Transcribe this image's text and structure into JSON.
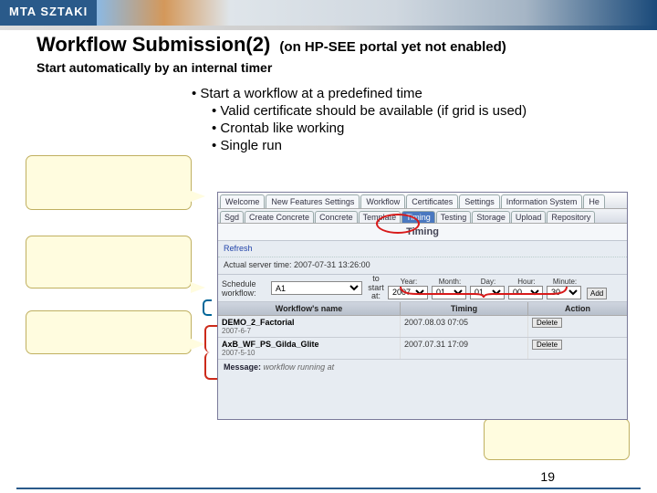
{
  "logo": "MTA SZTAKI",
  "title": "Workflow Submission(2)",
  "title_suffix": "(on HP-SEE portal yet not enabled)",
  "subtitle": "Start automatically by an internal timer",
  "bullets": {
    "b1": "• Start a workflow at a predefined time",
    "b2a": "• Valid certificate should be available (if grid is used)",
    "b2b": "• Crontab like working",
    "b2c": "• Single run"
  },
  "tabs": [
    "Welcome",
    "New Features Settings",
    "Workflow",
    "Certificates",
    "Settings",
    "Information System",
    "He"
  ],
  "subtabs": [
    "Sgd",
    "Create Concrete",
    "Concrete",
    "Template",
    "Timing",
    "Testing",
    "Storage",
    "Upload",
    "Repository"
  ],
  "subtab_active_index": 4,
  "panel_title": "Timing",
  "refresh": "Refresh",
  "server_time_label": "Actual server time: ",
  "server_time_value": "2007-07-31 13:26:00",
  "schedule_label": "Schedule workflow:",
  "schedule_select_value": "A1",
  "to_start_label": "to start at:",
  "date_labels": {
    "year": "Year:",
    "month": "Month:",
    "day": "Day:",
    "hour": "Hour:",
    "minute": "Minute:"
  },
  "date_values": {
    "year": "2007",
    "month": "01",
    "day": "01",
    "hour": "00",
    "minute": "30"
  },
  "add_btn": "Add",
  "table_headers": {
    "name": "Workflow's name",
    "timing": "Timing",
    "action": "Action"
  },
  "rows": [
    {
      "name": "DEMO_2_Factorial",
      "date": "2007-6-7",
      "timing": "2007.08.03 07:05",
      "action": "Delete"
    },
    {
      "name": "AxB_WF_PS_Gilda_Glite",
      "date": "2007-5-10",
      "timing": "2007.07.31 17:09",
      "action": "Delete"
    }
  ],
  "message_label": "Message:",
  "message_text": "workflow running at",
  "page_number": "19"
}
